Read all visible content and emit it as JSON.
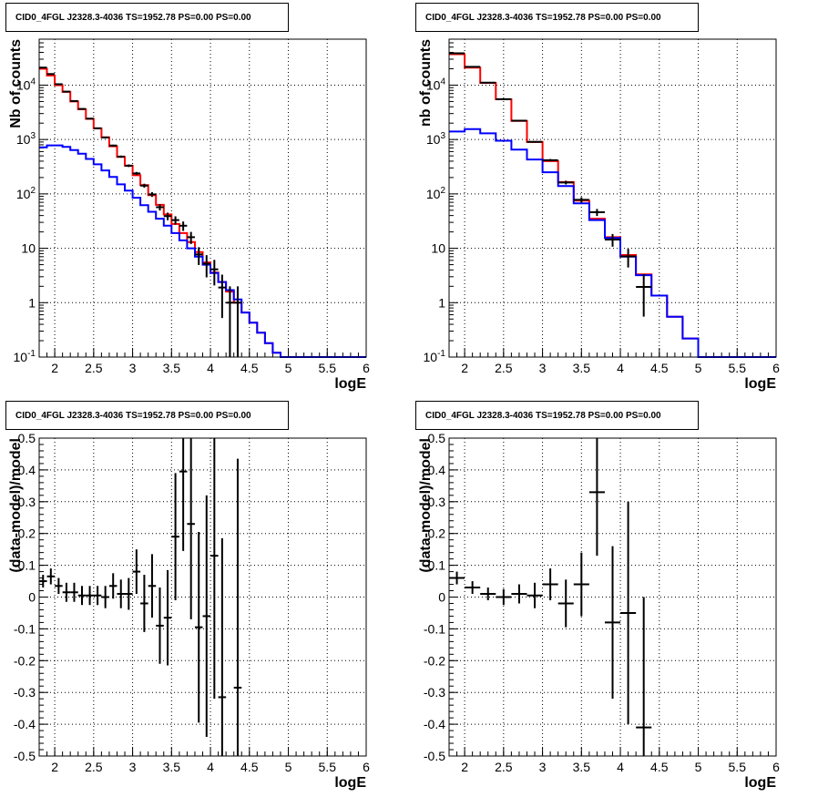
{
  "colors": {
    "model_total": "#ff0000",
    "model_background": "#0000ff",
    "data": "#000000",
    "grid": "#000000"
  },
  "chart_data": [
    {
      "type": "line",
      "title": "CID0_4FGL J2328.3-4036 TS=1952.78 PS=0.00 PS=0.00",
      "xlabel": "logE",
      "ylabel": "Nb of counts",
      "xlim": [
        1.8,
        6.0
      ],
      "ylim": [
        0.1,
        70000
      ],
      "log_y": true,
      "grid": true,
      "x_ticks": [
        "2",
        "2.5",
        "3",
        "3.5",
        "4",
        "4.5",
        "5",
        "5.5",
        "6"
      ],
      "y_ticks": [
        "10^-1",
        "1",
        "10",
        "10^2",
        "10^3",
        "10^4"
      ],
      "bin_edges": [
        1.8,
        1.9,
        2.0,
        2.1,
        2.2,
        2.3,
        2.4,
        2.5,
        2.6,
        2.7,
        2.8,
        2.9,
        3.0,
        3.1,
        3.2,
        3.3,
        3.4,
        3.5,
        3.6,
        3.7,
        3.8,
        3.9,
        4.0,
        4.1,
        4.2,
        4.3,
        4.4,
        4.5,
        4.6,
        4.7,
        4.8,
        4.9,
        5.0,
        5.1,
        5.2,
        5.3,
        5.4,
        5.5,
        5.6,
        5.7,
        5.8,
        5.9,
        6.0
      ],
      "series": [
        {
          "key": "total",
          "values": [
            20000,
            15000,
            10000,
            7500,
            5000,
            3600,
            2400,
            1600,
            1100,
            750,
            480,
            330,
            220,
            145,
            95,
            63,
            42,
            28,
            19,
            13,
            8.5,
            5.5,
            3.6,
            2.4,
            1.6,
            1.0,
            0.66,
            0.43,
            0.28,
            0.18,
            0.12,
            0.1,
            0.1,
            0.1,
            0.1,
            0.1,
            0.1,
            0.1,
            0.1,
            0.1,
            0.1,
            0.1
          ]
        },
        {
          "key": "background",
          "values": [
            720,
            780,
            780,
            730,
            640,
            550,
            440,
            350,
            270,
            205,
            150,
            115,
            85,
            62,
            47,
            35,
            26,
            19,
            14,
            10,
            7,
            5,
            3.5,
            2.4,
            1.7,
            1.15,
            0.66,
            0.43,
            0.28,
            0.18,
            0.12,
            0.1,
            0.1,
            0.1,
            0.1,
            0.1,
            0.1,
            0.1,
            0.1,
            0.1,
            0.1,
            0.1
          ]
        }
      ],
      "points": [
        {
          "x": 1.85,
          "y": 21000
        },
        {
          "x": 1.95,
          "y": 16000
        },
        {
          "x": 2.05,
          "y": 10400
        },
        {
          "x": 2.15,
          "y": 7600
        },
        {
          "x": 2.25,
          "y": 5100
        },
        {
          "x": 2.35,
          "y": 3650
        },
        {
          "x": 2.45,
          "y": 2420
        },
        {
          "x": 2.55,
          "y": 1610
        },
        {
          "x": 2.65,
          "y": 1090
        },
        {
          "x": 2.75,
          "y": 775
        },
        {
          "x": 2.85,
          "y": 485
        },
        {
          "x": 2.95,
          "y": 330
        },
        {
          "x": 3.05,
          "y": 238
        },
        {
          "x": 3.15,
          "y": 142
        },
        {
          "x": 3.25,
          "y": 98
        },
        {
          "x": 3.35,
          "y": 57
        },
        {
          "x": 3.45,
          "y": 39
        },
        {
          "x": 3.55,
          "y": 33
        },
        {
          "x": 3.65,
          "y": 26
        },
        {
          "x": 3.75,
          "y": 16
        },
        {
          "x": 3.85,
          "y": 7.7
        },
        {
          "x": 3.95,
          "y": 5.2
        },
        {
          "x": 4.05,
          "y": 4.1
        },
        {
          "x": 4.15,
          "y": 1.9
        },
        {
          "x": 4.25,
          "y": 1.0
        },
        {
          "x": 4.35,
          "y": 1.0
        }
      ]
    },
    {
      "type": "line",
      "title": "CID0_4FGL J2328.3-4036 TS=1952.78 PS=0.00 PS=0.00",
      "xlabel": "logE",
      "ylabel": "nb of counts",
      "xlim": [
        1.8,
        6.0
      ],
      "ylim": [
        0.1,
        70000
      ],
      "log_y": true,
      "grid": true,
      "x_ticks": [
        "2",
        "2.5",
        "3",
        "3.5",
        "4",
        "4.5",
        "5",
        "5.5",
        "6"
      ],
      "y_ticks": [
        "10^-1",
        "1",
        "10",
        "10^2",
        "10^3",
        "10^4"
      ],
      "bin_edges": [
        1.8,
        2.0,
        2.2,
        2.4,
        2.6,
        2.8,
        3.0,
        3.2,
        3.4,
        3.6,
        3.8,
        4.0,
        4.2,
        4.4,
        4.6,
        4.8,
        5.0,
        5.2,
        5.4,
        5.6,
        5.8,
        6.0
      ],
      "series": [
        {
          "key": "total",
          "values": [
            37000,
            21000,
            11000,
            5500,
            2200,
            900,
            400,
            165,
            75,
            35,
            16,
            7.5,
            3.3,
            1.35,
            0.55,
            0.22,
            0.1,
            0.1,
            0.1,
            0.1,
            0.1
          ]
        },
        {
          "key": "background",
          "values": [
            1400,
            1550,
            1300,
            950,
            650,
            430,
            250,
            140,
            67,
            33,
            15.5,
            7,
            3.2,
            1.35,
            0.55,
            0.22,
            0.1,
            0.1,
            0.1,
            0.1,
            0.1
          ]
        }
      ],
      "points": [
        {
          "x": 1.9,
          "y": 38500
        },
        {
          "x": 2.1,
          "y": 21700
        },
        {
          "x": 2.3,
          "y": 11100
        },
        {
          "x": 2.5,
          "y": 5530
        },
        {
          "x": 2.7,
          "y": 2220
        },
        {
          "x": 2.9,
          "y": 905
        },
        {
          "x": 3.1,
          "y": 417
        },
        {
          "x": 3.3,
          "y": 162
        },
        {
          "x": 3.5,
          "y": 78
        },
        {
          "x": 3.7,
          "y": 46
        },
        {
          "x": 3.9,
          "y": 14.5
        },
        {
          "x": 4.1,
          "y": 7.1
        },
        {
          "x": 4.3,
          "y": 1.95
        }
      ]
    },
    {
      "type": "scatter",
      "title": "CID0_4FGL J2328.3-4036 TS=1952.78 PS=0.00 PS=0.00",
      "xlabel": "logE",
      "ylabel": "(data-model)/model",
      "xlim": [
        1.8,
        6.0
      ],
      "ylim": [
        -0.5,
        0.5
      ],
      "grid": true,
      "x_ticks": [
        "2",
        "2.5",
        "3",
        "3.5",
        "4",
        "4.5",
        "5",
        "5.5",
        "6"
      ],
      "y_ticks": [
        "-0.5",
        "-0.4",
        "-0.3",
        "-0.2",
        "-0.1",
        "0",
        "0.1",
        "0.2",
        "0.3",
        "0.4",
        "0.5"
      ],
      "points": [
        {
          "x": 1.85,
          "y": 0.05,
          "err": 0.02
        },
        {
          "x": 1.95,
          "y": 0.065,
          "err": 0.025
        },
        {
          "x": 2.05,
          "y": 0.035,
          "err": 0.025
        },
        {
          "x": 2.15,
          "y": 0.015,
          "err": 0.03
        },
        {
          "x": 2.25,
          "y": 0.015,
          "err": 0.03
        },
        {
          "x": 2.35,
          "y": 0.005,
          "err": 0.03
        },
        {
          "x": 2.45,
          "y": 0.005,
          "err": 0.03
        },
        {
          "x": 2.55,
          "y": 0.005,
          "err": 0.03
        },
        {
          "x": 2.65,
          "y": 0.0,
          "err": 0.035
        },
        {
          "x": 2.75,
          "y": 0.035,
          "err": 0.04
        },
        {
          "x": 2.85,
          "y": 0.01,
          "err": 0.045
        },
        {
          "x": 2.95,
          "y": 0.01,
          "err": 0.05
        },
        {
          "x": 3.05,
          "y": 0.08,
          "err": 0.07
        },
        {
          "x": 3.15,
          "y": -0.02,
          "err": 0.09
        },
        {
          "x": 3.25,
          "y": 0.035,
          "err": 0.1
        },
        {
          "x": 3.35,
          "y": -0.09,
          "err": 0.12
        },
        {
          "x": 3.45,
          "y": -0.065,
          "err": 0.15
        },
        {
          "x": 3.55,
          "y": 0.19,
          "err": 0.2
        },
        {
          "x": 3.65,
          "y": 0.395,
          "err": 0.25
        },
        {
          "x": 3.75,
          "y": 0.23,
          "err": 0.3
        },
        {
          "x": 3.85,
          "y": -0.095,
          "err": 0.3
        },
        {
          "x": 3.95,
          "y": -0.06,
          "err": 0.38
        },
        {
          "x": 4.05,
          "y": 0.13,
          "err": 0.45
        },
        {
          "x": 4.15,
          "y": -0.315,
          "err": 0.5
        },
        {
          "x": 4.35,
          "y": -0.285,
          "err": 0.72
        }
      ]
    },
    {
      "type": "scatter",
      "title": "CID0_4FGL J2328.3-4036 TS=1952.78 PS=0.00 PS=0.00",
      "xlabel": "logE",
      "ylabel": "(data-model)/model",
      "xlim": [
        1.8,
        6.0
      ],
      "ylim": [
        -0.5,
        0.5
      ],
      "grid": true,
      "x_ticks": [
        "2",
        "2.5",
        "3",
        "3.5",
        "4",
        "4.5",
        "5",
        "5.5",
        "6"
      ],
      "y_ticks": [
        "-0.5",
        "-0.4",
        "-0.3",
        "-0.2",
        "-0.1",
        "0",
        "0.1",
        "0.2",
        "0.3",
        "0.4",
        "0.5"
      ],
      "points": [
        {
          "x": 1.9,
          "y": 0.06,
          "err": 0.02
        },
        {
          "x": 2.1,
          "y": 0.03,
          "err": 0.02
        },
        {
          "x": 2.3,
          "y": 0.01,
          "err": 0.02
        },
        {
          "x": 2.5,
          "y": 0.0,
          "err": 0.025
        },
        {
          "x": 2.7,
          "y": 0.01,
          "err": 0.03
        },
        {
          "x": 2.9,
          "y": 0.005,
          "err": 0.04
        },
        {
          "x": 3.1,
          "y": 0.04,
          "err": 0.05
        },
        {
          "x": 3.3,
          "y": -0.02,
          "err": 0.075
        },
        {
          "x": 3.5,
          "y": 0.04,
          "err": 0.1
        },
        {
          "x": 3.7,
          "y": 0.33,
          "err": 0.2
        },
        {
          "x": 3.9,
          "y": -0.08,
          "err": 0.24
        },
        {
          "x": 4.1,
          "y": -0.05,
          "err": 0.35
        },
        {
          "x": 4.3,
          "y": -0.41,
          "err": 0.41
        }
      ]
    }
  ]
}
